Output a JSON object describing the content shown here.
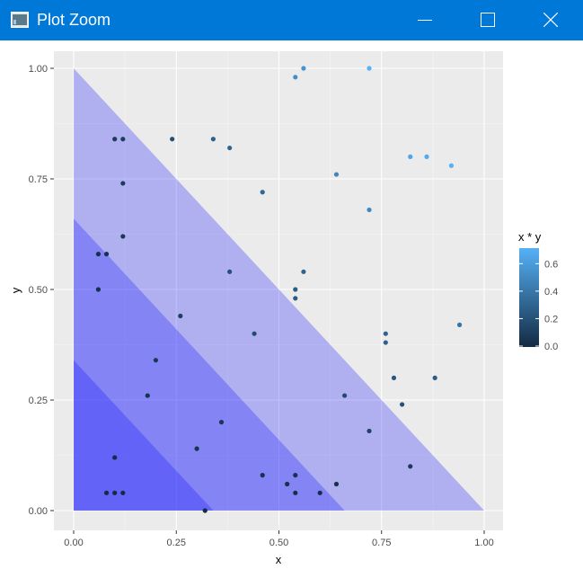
{
  "window": {
    "title": "Plot Zoom",
    "app_icon": "rstudio-plot-icon",
    "controls": {
      "minimize_icon": "minimize-icon",
      "maximize_icon": "maximize-icon",
      "close_icon": "close-icon"
    },
    "titlebar_color": "#0078d7"
  },
  "chart_data": {
    "type": "scatter",
    "title": "",
    "xlabel": "x",
    "ylabel": "y",
    "xlim": [
      -0.05,
      1.05
    ],
    "ylim": [
      -0.05,
      1.05
    ],
    "x_ticks": [
      0,
      0.25,
      0.5,
      0.75,
      1
    ],
    "x_tick_labels": [
      "0.00",
      "0.25",
      "0.50",
      "0.75",
      "1.00"
    ],
    "y_ticks": [
      0,
      0.25,
      0.5,
      0.75,
      1
    ],
    "y_tick_labels": [
      "0.00",
      "0.25",
      "0.50",
      "0.75",
      "1.00"
    ],
    "grid": true,
    "panel_background": "#ebebeb",
    "triangles": [
      {
        "vertices": [
          [
            0,
            0
          ],
          [
            1,
            0
          ],
          [
            0,
            1
          ]
        ],
        "fill": "#0000ff",
        "opacity": 0.25
      },
      {
        "vertices": [
          [
            0,
            0
          ],
          [
            0.66,
            0
          ],
          [
            0,
            0.66
          ]
        ],
        "fill": "#0000ff",
        "opacity": 0.25
      },
      {
        "vertices": [
          [
            0,
            0
          ],
          [
            0.34,
            0
          ],
          [
            0,
            0.34
          ]
        ],
        "fill": "#0000ff",
        "opacity": 0.25
      }
    ],
    "points": [
      {
        "x": 0.1,
        "y": 0.84
      },
      {
        "x": 0.12,
        "y": 0.84
      },
      {
        "x": 0.24,
        "y": 0.84
      },
      {
        "x": 0.34,
        "y": 0.84
      },
      {
        "x": 0.38,
        "y": 0.82
      },
      {
        "x": 0.12,
        "y": 0.74
      },
      {
        "x": 0.12,
        "y": 0.62
      },
      {
        "x": 0.06,
        "y": 0.58
      },
      {
        "x": 0.08,
        "y": 0.58
      },
      {
        "x": 0.06,
        "y": 0.5
      },
      {
        "x": 0.26,
        "y": 0.44
      },
      {
        "x": 0.2,
        "y": 0.34
      },
      {
        "x": 0.18,
        "y": 0.26
      },
      {
        "x": 0.36,
        "y": 0.2
      },
      {
        "x": 0.3,
        "y": 0.14
      },
      {
        "x": 0.1,
        "y": 0.12
      },
      {
        "x": 0.08,
        "y": 0.04
      },
      {
        "x": 0.1,
        "y": 0.04
      },
      {
        "x": 0.12,
        "y": 0.04
      },
      {
        "x": 0.32,
        "y": 0.0
      },
      {
        "x": 0.46,
        "y": 0.08
      },
      {
        "x": 0.52,
        "y": 0.06
      },
      {
        "x": 0.54,
        "y": 0.08
      },
      {
        "x": 0.54,
        "y": 0.04
      },
      {
        "x": 0.6,
        "y": 0.04
      },
      {
        "x": 0.64,
        "y": 0.06
      },
      {
        "x": 0.72,
        "y": 0.18
      },
      {
        "x": 0.82,
        "y": 0.1
      },
      {
        "x": 0.66,
        "y": 0.26
      },
      {
        "x": 0.8,
        "y": 0.24
      },
      {
        "x": 0.78,
        "y": 0.3
      },
      {
        "x": 0.88,
        "y": 0.3
      },
      {
        "x": 0.76,
        "y": 0.38
      },
      {
        "x": 0.76,
        "y": 0.4
      },
      {
        "x": 0.94,
        "y": 0.42
      },
      {
        "x": 0.44,
        "y": 0.4
      },
      {
        "x": 0.38,
        "y": 0.54
      },
      {
        "x": 0.54,
        "y": 0.5
      },
      {
        "x": 0.54,
        "y": 0.48
      },
      {
        "x": 0.56,
        "y": 0.54
      },
      {
        "x": 0.46,
        "y": 0.72
      },
      {
        "x": 0.64,
        "y": 0.76
      },
      {
        "x": 0.72,
        "y": 0.68
      },
      {
        "x": 0.54,
        "y": 0.98
      },
      {
        "x": 0.56,
        "y": 1.0
      },
      {
        "x": 0.72,
        "y": 1.0
      },
      {
        "x": 0.82,
        "y": 0.8
      },
      {
        "x": 0.86,
        "y": 0.8
      },
      {
        "x": 0.92,
        "y": 0.78
      }
    ],
    "color_scale": {
      "title": "x * y",
      "low_color": "#132b43",
      "high_color": "#56b1f7",
      "limits": [
        0,
        0.72
      ],
      "breaks": [
        0,
        0.2,
        0.4,
        0.6
      ],
      "break_labels": [
        "0.0",
        "0.2",
        "0.4",
        "0.6"
      ]
    },
    "legend_position": "right"
  }
}
